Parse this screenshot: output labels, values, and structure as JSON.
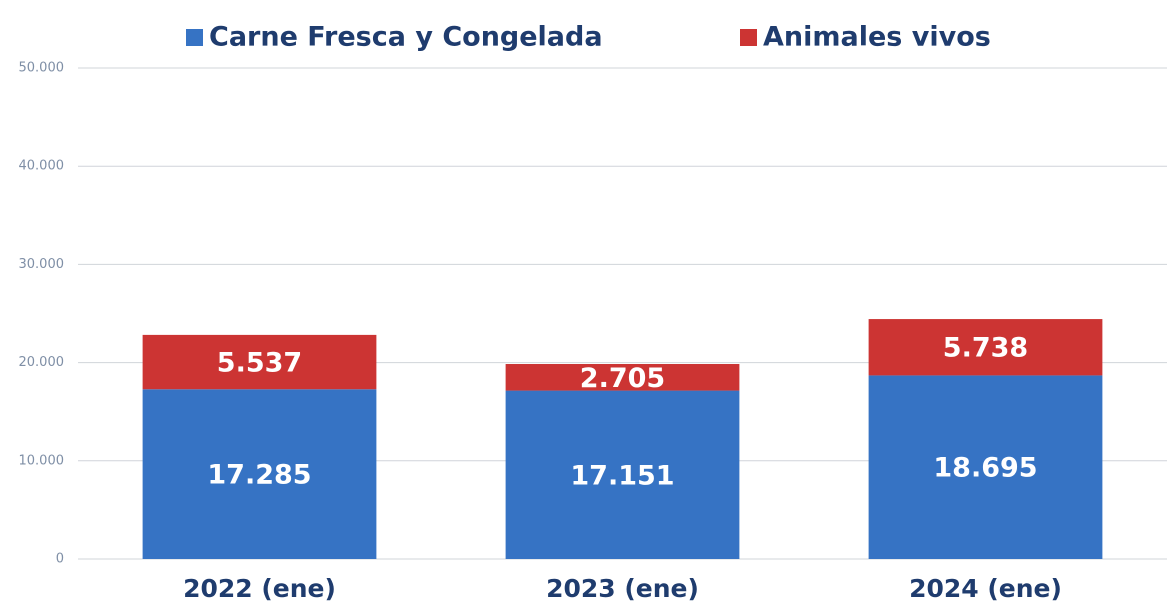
{
  "chart_data": {
    "type": "stacked-bar",
    "categories": [
      "2022 (ene)",
      "2023 (ene)",
      "2024 (ene)"
    ],
    "series": [
      {
        "name": "Carne Fresca y Congelada",
        "color": "#3673c4",
        "values": [
          17285,
          17151,
          18695
        ],
        "value_labels": [
          "17.285",
          "17.151",
          "18.695"
        ]
      },
      {
        "name": "Animales vivos",
        "color": "#cc3433",
        "values": [
          5537,
          2705,
          5738
        ],
        "value_labels": [
          "5.537",
          "2.705",
          "5.738"
        ]
      }
    ],
    "ylim": [
      0,
      50000
    ],
    "yticks": [
      0,
      {
        "value": 10000,
        "label": "10.000"
      },
      {
        "value": 20000,
        "label": "20.000"
      },
      {
        "value": 30000,
        "label": "30.000"
      },
      {
        "value": 40000,
        "label": "40.000"
      },
      {
        "value": 50000,
        "label": "50.000"
      }
    ],
    "grid": true,
    "legend": "top"
  }
}
